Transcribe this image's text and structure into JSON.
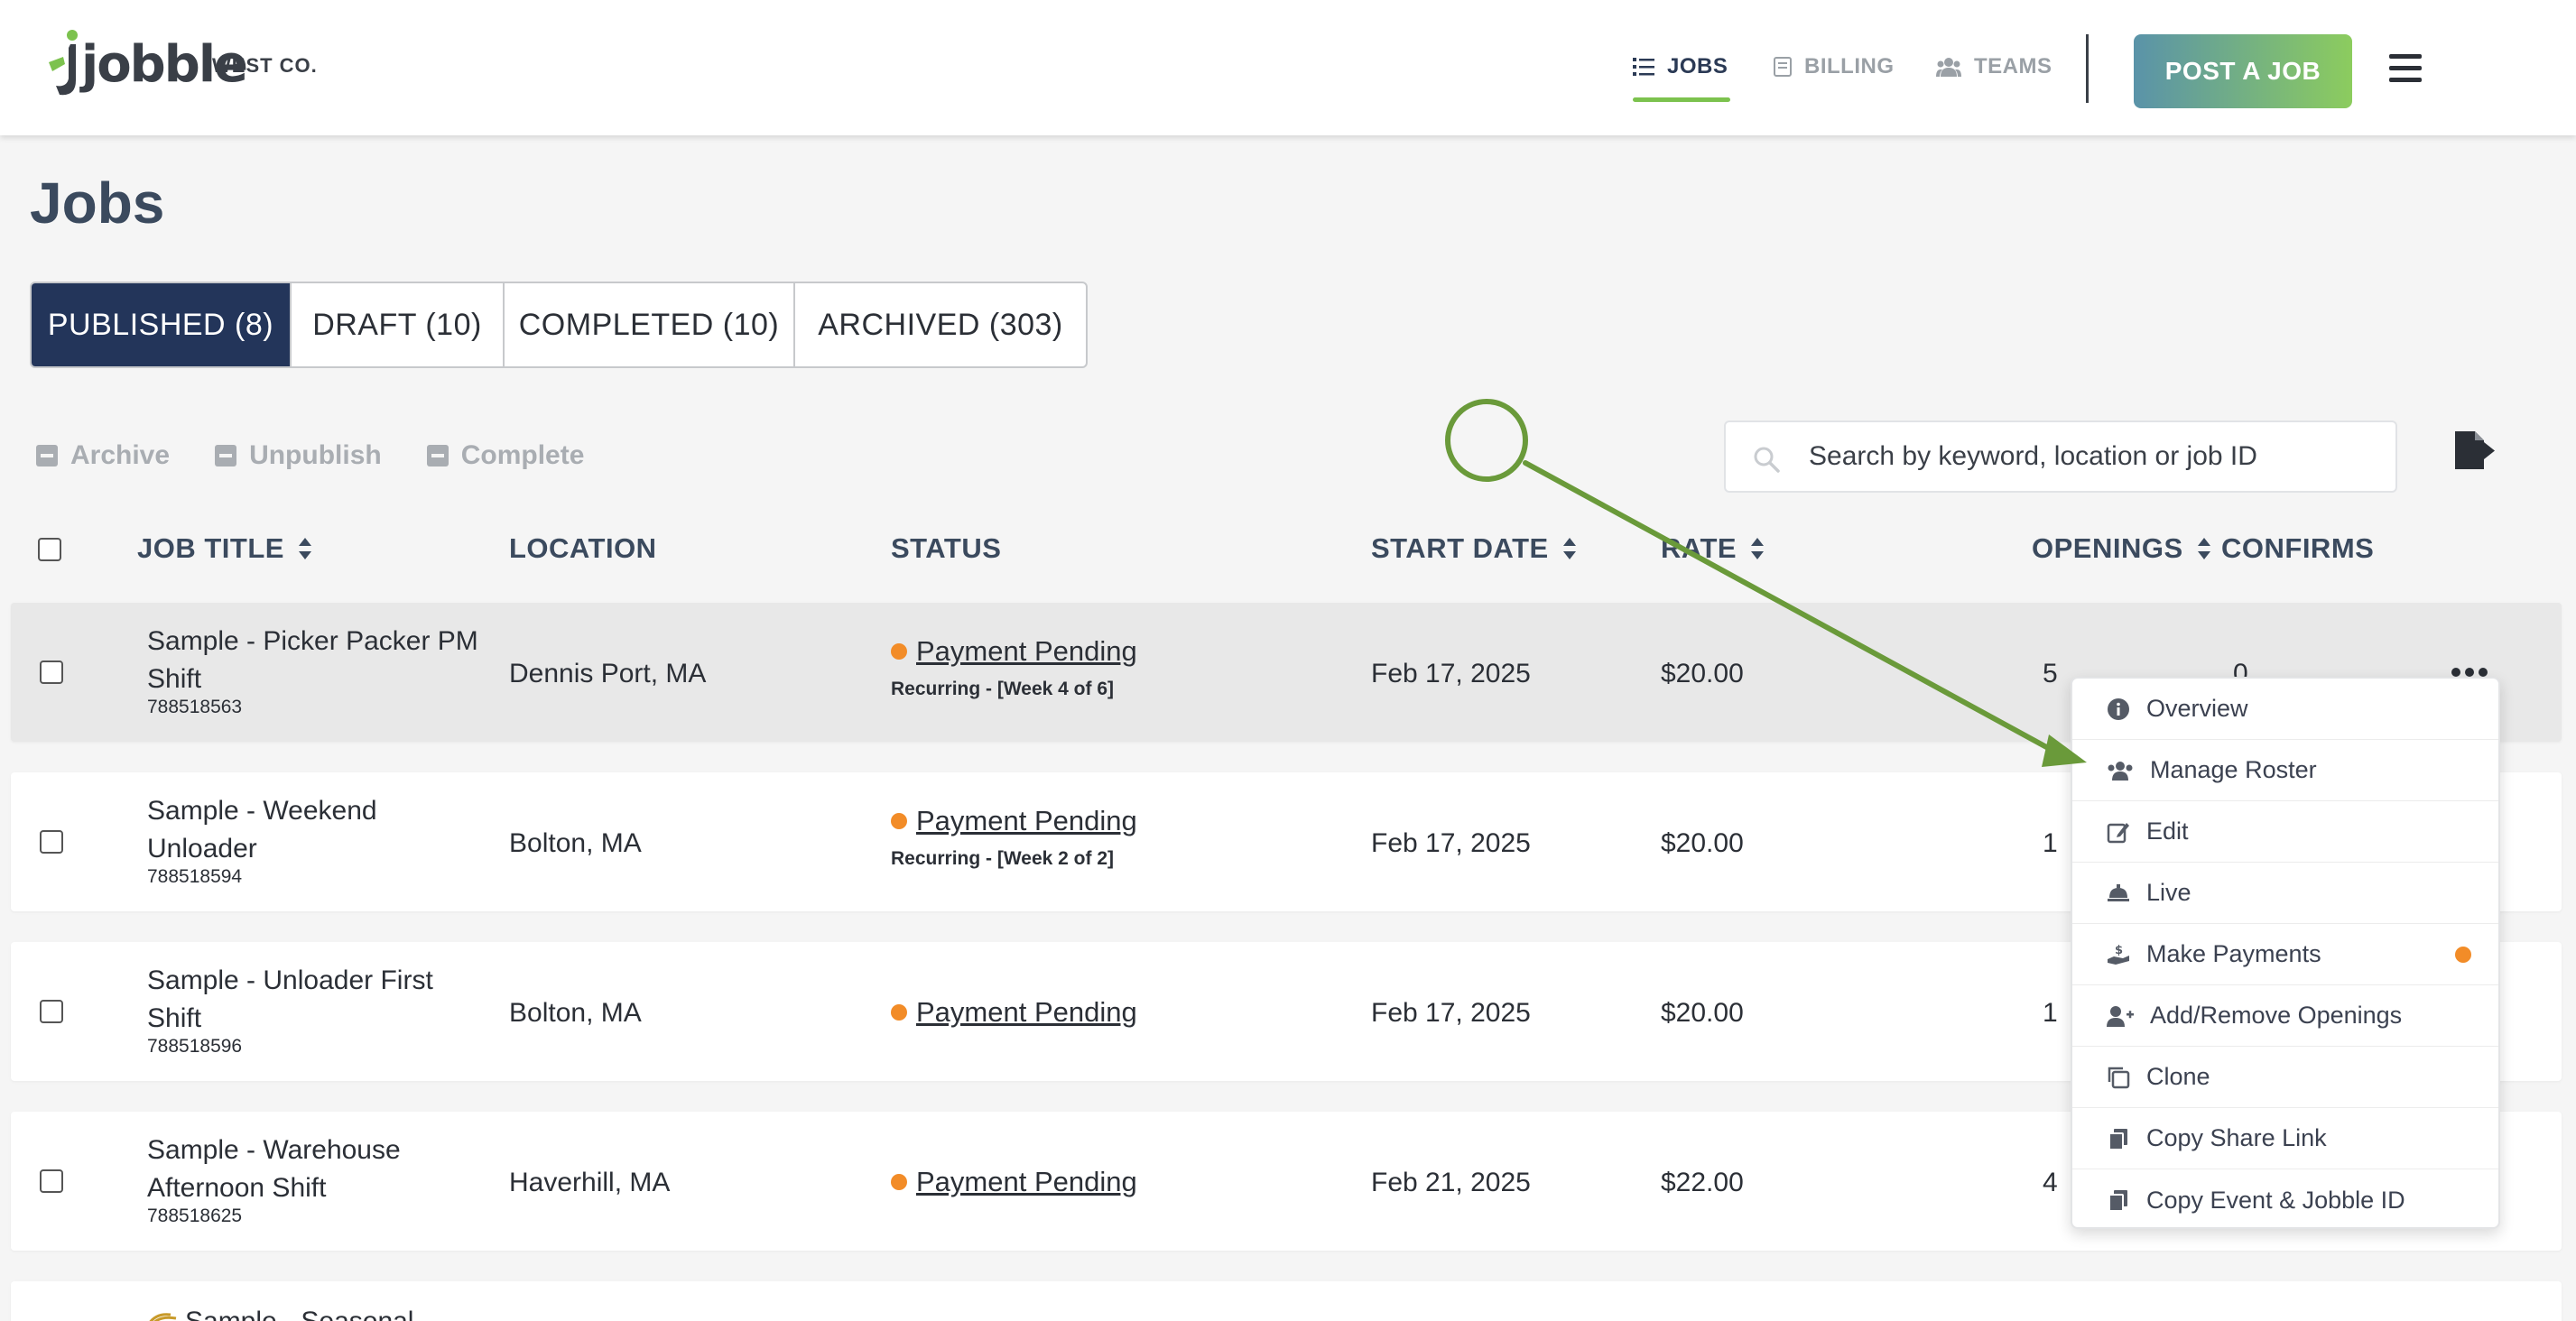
{
  "header": {
    "logo_text": "jobble",
    "company": "WEST CO.",
    "nav": [
      {
        "label": "JOBS",
        "icon": "list-icon",
        "active": true
      },
      {
        "label": "BILLING",
        "icon": "receipt-icon",
        "active": false
      },
      {
        "label": "TEAMS",
        "icon": "users-icon",
        "active": false
      }
    ],
    "post_button": "POST A JOB",
    "menu_icon": "hamburger-icon"
  },
  "page": {
    "title": "Jobs",
    "tabs": [
      {
        "label": "PUBLISHED (8)",
        "active": true
      },
      {
        "label": "DRAFT (10)",
        "active": false
      },
      {
        "label": "COMPLETED (10)",
        "active": false
      },
      {
        "label": "ARCHIVED (303)",
        "active": false
      }
    ],
    "bulk_actions": [
      {
        "label": "Archive",
        "icon": "archive-icon"
      },
      {
        "label": "Unpublish",
        "icon": "minus-square-icon"
      },
      {
        "label": "Complete",
        "icon": "minus-square-icon"
      }
    ],
    "search": {
      "placeholder": "Search by keyword, location or job ID",
      "value": ""
    },
    "export_icon": "file-export-icon"
  },
  "table": {
    "headers": {
      "job_title": "JOB TITLE",
      "location": "LOCATION",
      "status": "STATUS",
      "start_date": "START DATE",
      "rate": "RATE",
      "openings": "OPENINGS",
      "confirms": "CONFIRMS"
    },
    "rows": [
      {
        "title": "Sample - Picker Packer PM Shift",
        "id": "788518563",
        "location": "Dennis Port, MA",
        "status": "Payment Pending",
        "recurring": "Recurring - [Week 4 of 6]",
        "start_date": "Feb 17, 2025",
        "rate": "$20.00",
        "openings": "5",
        "confirms": "0"
      },
      {
        "title": "Sample - Weekend Unloader",
        "id": "788518594",
        "location": "Bolton, MA",
        "status": "Payment Pending",
        "recurring": "Recurring - [Week 2 of 2]",
        "start_date": "Feb 17, 2025",
        "rate": "$20.00",
        "openings": "1",
        "confirms": ""
      },
      {
        "title": "Sample - Unloader First Shift",
        "id": "788518596",
        "location": "Bolton, MA",
        "status": "Payment Pending",
        "recurring": "",
        "start_date": "Feb 17, 2025",
        "rate": "$20.00",
        "openings": "1",
        "confirms": ""
      },
      {
        "title": "Sample - Warehouse Afternoon Shift",
        "id": "788518625",
        "location": "Haverhill, MA",
        "status": "Payment Pending",
        "recurring": "",
        "start_date": "Feb 21, 2025",
        "rate": "$22.00",
        "openings": "4",
        "confirms": ""
      },
      {
        "title": "Sample - Seasonal",
        "id": "",
        "location": "",
        "status": "",
        "recurring": "",
        "start_date": "",
        "rate": "",
        "openings": "",
        "confirms": ""
      }
    ]
  },
  "context_menu": {
    "items": [
      {
        "label": "Overview",
        "icon": "info-circle-icon"
      },
      {
        "label": "Manage Roster",
        "icon": "users-icon"
      },
      {
        "label": "Edit",
        "icon": "edit-icon"
      },
      {
        "label": "Live",
        "icon": "bell-service-icon"
      },
      {
        "label": "Make Payments",
        "icon": "hand-dollar-icon",
        "badge": true
      },
      {
        "label": "Add/Remove Openings",
        "icon": "user-plus-icon"
      },
      {
        "label": "Clone",
        "icon": "clone-icon"
      },
      {
        "label": "Copy Share Link",
        "icon": "copy-icon"
      },
      {
        "label": "Copy Event & Jobble ID",
        "icon": "copy-icon"
      }
    ]
  },
  "colors": {
    "accent_green": "#7cc24e",
    "navy": "#23355a",
    "status_orange": "#f28c28",
    "annotation_green": "#6a9a3a"
  }
}
